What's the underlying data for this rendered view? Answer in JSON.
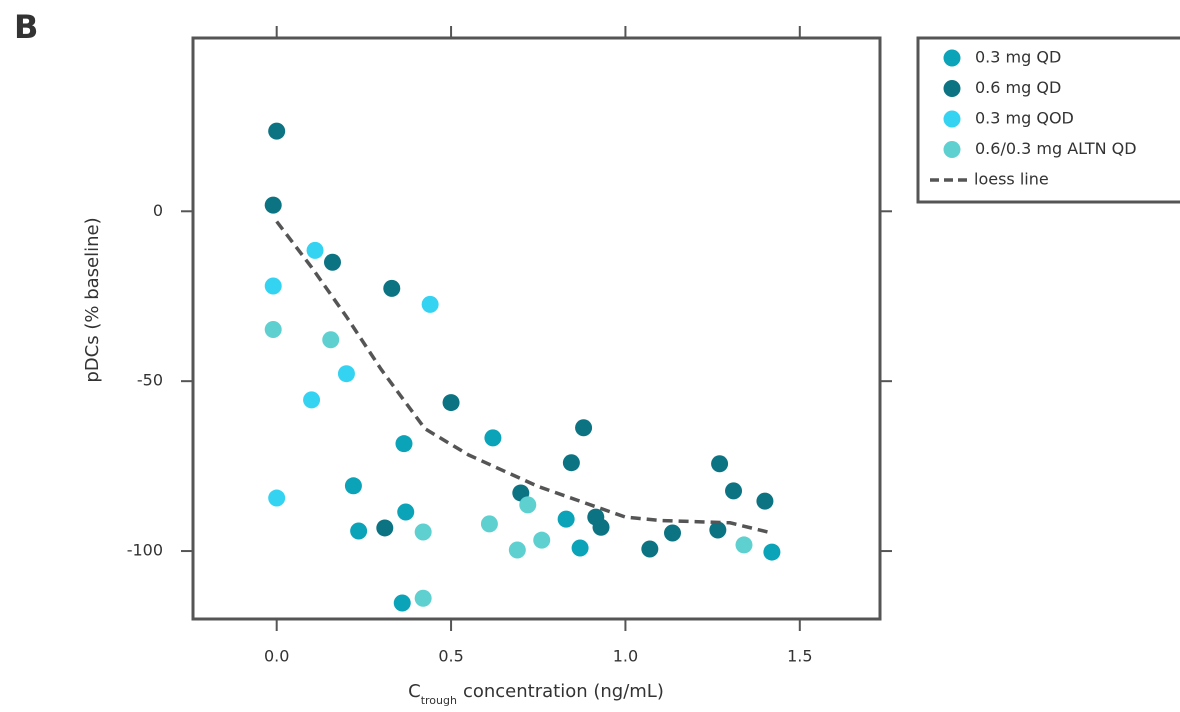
{
  "chart_data": {
    "type": "scatter",
    "panel_label": "B",
    "ylabel": "pDCs (% baseline)",
    "xlabel_parts": [
      "C",
      "trough",
      "concentration (ng/mL)"
    ],
    "xlim": [
      -0.24,
      1.73
    ],
    "ylim": [
      -120,
      51
    ],
    "xticks": [
      {
        "value": 0,
        "label": "0.0"
      },
      0.5,
      {
        "value": 1,
        "label": "1.0"
      },
      1.5
    ],
    "yticks": [
      0,
      -50,
      -100
    ],
    "grid": false,
    "legend_position": "outside-right",
    "series": [
      {
        "name": "0.3 mg QD",
        "type": "scatter",
        "color": "#0aa3b8",
        "x": [
          0.62,
          0.365,
          0.22,
          0.37,
          0.83,
          0.235,
          0.87,
          1.42,
          0.36
        ],
        "values": [
          -66.7,
          -68.4,
          -80.8,
          -88.5,
          -90.6,
          -94.1,
          -99.1,
          -100.3,
          -115.3
        ]
      },
      {
        "name": "0.6 mg QD",
        "type": "scatter",
        "color": "#0c7383",
        "x": [
          0.0,
          -0.01,
          0.16,
          0.33,
          0.5,
          0.88,
          0.845,
          1.27,
          1.31,
          1.4,
          0.7,
          0.915,
          0.93,
          0.31,
          1.135,
          1.265,
          1.07
        ],
        "values": [
          23.6,
          1.8,
          -15,
          -22.7,
          -56.3,
          -63.7,
          -74,
          -74.3,
          -82.3,
          -85.3,
          -82.9,
          -90,
          -93,
          -93.2,
          -94.7,
          -93.8,
          -99.4
        ]
      },
      {
        "name": "0.3 mg QOD",
        "type": "scatter",
        "color": "#35d3f2",
        "x": [
          0.11,
          0.44,
          -0.01,
          0.2,
          0.1,
          0.0
        ],
        "values": [
          -11.5,
          -27.4,
          -22,
          -47.8,
          -55.5,
          -84.4
        ]
      },
      {
        "name": "0.6/0.3 mg ALTN QD",
        "type": "scatter",
        "color": "#5fd0d0",
        "x": [
          -0.01,
          0.155,
          0.72,
          0.61,
          0.42,
          0.69,
          0.76,
          1.34,
          0.42
        ],
        "values": [
          -34.8,
          -37.8,
          -86.4,
          -92,
          -94.4,
          -99.7,
          -96.8,
          -98.2,
          -113.9
        ]
      },
      {
        "name": "loess line",
        "type": "line",
        "color": "#555555",
        "dashed": true,
        "x": [
          0.0,
          0.1,
          0.2,
          0.3,
          0.425,
          0.55,
          0.75,
          1.0,
          1.1,
          1.3,
          1.42
        ],
        "values": [
          -3,
          -16.5,
          -31,
          -46.6,
          -64,
          -71.7,
          -81,
          -90,
          -91,
          -91.7,
          -94.7
        ]
      }
    ]
  }
}
